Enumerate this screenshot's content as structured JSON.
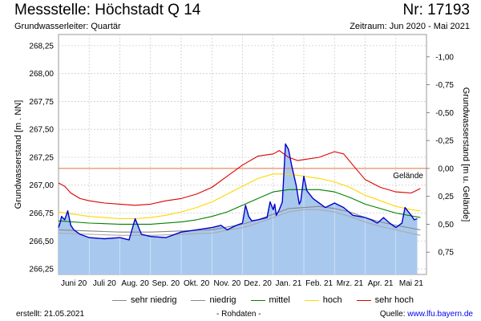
{
  "header": {
    "title": "Messstelle: Höchstadt Q 14",
    "nr": "Nr: 17193",
    "aquifer": "Grundwasserleiter: Quartär",
    "period": "Zeitraum: Jun 2020 - Mai 2021"
  },
  "footer": {
    "created": "erstellt:  21.05.2021",
    "rawdata": "- Rohdaten -",
    "source_label": "Quelle: ",
    "source_url": "www.lfu.bayern.de"
  },
  "legend": [
    {
      "label": "sehr niedrig",
      "color": "#888888"
    },
    {
      "label": "niedrig",
      "color": "#888888"
    },
    {
      "label": "mittel",
      "color": "#008000"
    },
    {
      "label": "hoch",
      "color": "#ffd700"
    },
    {
      "label": "sehr hoch",
      "color": "#dd0000"
    }
  ],
  "chart_data": {
    "type": "area",
    "ylabel_left": "Grundwasserstand [m . NN]",
    "ylabel_right": "Grundwasserstand [m u. Gelände]",
    "ylim": [
      266.2,
      268.35
    ],
    "yticks": [
      266.25,
      266.5,
      266.75,
      267.0,
      267.25,
      267.5,
      267.75,
      268.0,
      268.25
    ],
    "yticklabels": [
      "266,25",
      "266,50",
      "266,75",
      "267,00",
      "267,25",
      "267,50",
      "267,75",
      "268,00",
      "268,25"
    ],
    "right_ticks": [
      {
        "value": 266.4,
        "label": "0,75"
      },
      {
        "value": 266.65,
        "label": "0,50"
      },
      {
        "value": 266.9,
        "label": "0,25"
      },
      {
        "value": 267.15,
        "label": "0,00"
      },
      {
        "value": 267.4,
        "label": "-0,25"
      },
      {
        "value": 267.65,
        "label": "-0,50"
      },
      {
        "value": 267.9,
        "label": "-0,75"
      },
      {
        "value": 268.15,
        "label": "-1,00"
      }
    ],
    "x_months": [
      "Juni 20",
      "Juli 20",
      "Aug. 20",
      "Sep. 20",
      "Okt. 20",
      "Nov. 20",
      "Dez. 20",
      "Jan. 21",
      "Feb. 21",
      "Mrz. 21",
      "Apr. 21",
      "Mai 21"
    ],
    "gelaende": {
      "value": 267.15,
      "label": "Gelände",
      "color": "#e07040"
    },
    "series": [
      {
        "name": "sehr hoch",
        "color": "#dd0000",
        "x": [
          0,
          0.2,
          0.4,
          0.7,
          1,
          1.5,
          2,
          2.5,
          3,
          3.5,
          4,
          4.5,
          5,
          5.5,
          6,
          6.5,
          7,
          7.2,
          7.5,
          7.8,
          8,
          8.5,
          9,
          9.3,
          9.6,
          10,
          10.5,
          11,
          11.5,
          11.8
        ],
        "values": [
          267.02,
          266.99,
          266.93,
          266.88,
          266.86,
          266.84,
          266.83,
          266.82,
          266.83,
          266.86,
          266.88,
          266.92,
          266.98,
          267.08,
          267.18,
          267.26,
          267.28,
          267.31,
          267.25,
          267.22,
          267.23,
          267.25,
          267.3,
          267.28,
          267.18,
          267.05,
          266.98,
          266.94,
          266.93,
          266.97
        ]
      },
      {
        "name": "hoch",
        "color": "#ffd700",
        "x": [
          0,
          0.5,
          1,
          1.5,
          2,
          2.5,
          3,
          3.5,
          4,
          4.5,
          5,
          5.5,
          6,
          6.5,
          7,
          7.5,
          8,
          8.5,
          9,
          9.5,
          10,
          10.5,
          11,
          11.5,
          11.8
        ],
        "values": [
          266.76,
          266.74,
          266.72,
          266.71,
          266.7,
          266.7,
          266.71,
          266.73,
          266.76,
          266.8,
          266.85,
          266.92,
          266.99,
          267.06,
          267.1,
          267.1,
          267.08,
          267.06,
          267.03,
          266.98,
          266.91,
          266.86,
          266.81,
          266.78,
          266.77
        ]
      },
      {
        "name": "mittel",
        "color": "#008000",
        "x": [
          0,
          1,
          2,
          3,
          4,
          4.5,
          5,
          5.5,
          6,
          6.5,
          7,
          7.5,
          8,
          8.5,
          9,
          9.5,
          10,
          10.5,
          11,
          11.8
        ],
        "values": [
          266.68,
          266.66,
          266.65,
          266.65,
          266.67,
          266.69,
          266.72,
          266.76,
          266.82,
          266.88,
          266.94,
          266.96,
          266.96,
          266.96,
          266.94,
          266.89,
          266.83,
          266.79,
          266.75,
          266.71
        ]
      },
      {
        "name": "niedrig",
        "color": "#888888",
        "x": [
          0,
          1,
          2,
          3,
          4,
          5,
          6,
          6.5,
          7,
          7.5,
          8,
          8.5,
          9,
          9.5,
          10,
          10.5,
          11,
          11.8
        ],
        "values": [
          266.6,
          266.59,
          266.58,
          266.58,
          266.59,
          266.6,
          266.65,
          266.69,
          266.74,
          266.79,
          266.8,
          266.81,
          266.79,
          266.76,
          266.71,
          266.67,
          266.64,
          266.6
        ]
      },
      {
        "name": "sehr niedrig",
        "color": "#aaaaaa",
        "x": [
          0,
          1,
          2,
          3,
          4,
          5,
          6,
          6.5,
          7,
          7.5,
          8,
          8.5,
          9,
          9.5,
          10,
          10.5,
          11,
          11.8
        ],
        "values": [
          266.57,
          266.56,
          266.55,
          266.55,
          266.56,
          266.57,
          266.62,
          266.66,
          266.71,
          266.76,
          266.78,
          266.78,
          266.76,
          266.72,
          266.67,
          266.63,
          266.6,
          266.55
        ]
      },
      {
        "name": "Messwerte",
        "color": "#0000cc",
        "x": [
          0,
          0.05,
          0.1,
          0.2,
          0.3,
          0.4,
          0.5,
          0.7,
          1,
          1.5,
          2,
          2.3,
          2.5,
          2.7,
          3,
          3.5,
          4,
          4.5,
          5,
          5.3,
          5.5,
          5.8,
          6,
          6.1,
          6.2,
          6.3,
          6.5,
          6.8,
          6.9,
          7,
          7.05,
          7.1,
          7.2,
          7.3,
          7.4,
          7.5,
          7.6,
          7.75,
          7.85,
          7.9,
          8,
          8.1,
          8.3,
          8.5,
          8.7,
          9,
          9.3,
          9.6,
          10,
          10.2,
          10.4,
          10.6,
          10.8,
          11,
          11.2,
          11.3,
          11.5,
          11.6,
          11.7
        ],
        "values": [
          266.62,
          266.66,
          266.72,
          266.69,
          266.77,
          266.64,
          266.6,
          266.56,
          266.53,
          266.52,
          266.53,
          266.51,
          266.7,
          266.56,
          266.54,
          266.53,
          266.58,
          266.6,
          266.62,
          266.64,
          266.6,
          266.64,
          266.66,
          266.82,
          266.72,
          266.68,
          266.69,
          266.71,
          266.85,
          266.78,
          266.83,
          266.73,
          266.78,
          266.85,
          267.37,
          267.32,
          267.18,
          267.0,
          266.83,
          266.86,
          267.08,
          266.95,
          266.88,
          266.84,
          266.8,
          266.84,
          266.8,
          266.73,
          266.71,
          266.69,
          266.66,
          266.71,
          266.66,
          266.62,
          266.66,
          266.8,
          266.73,
          266.69,
          266.7
        ]
      }
    ]
  }
}
